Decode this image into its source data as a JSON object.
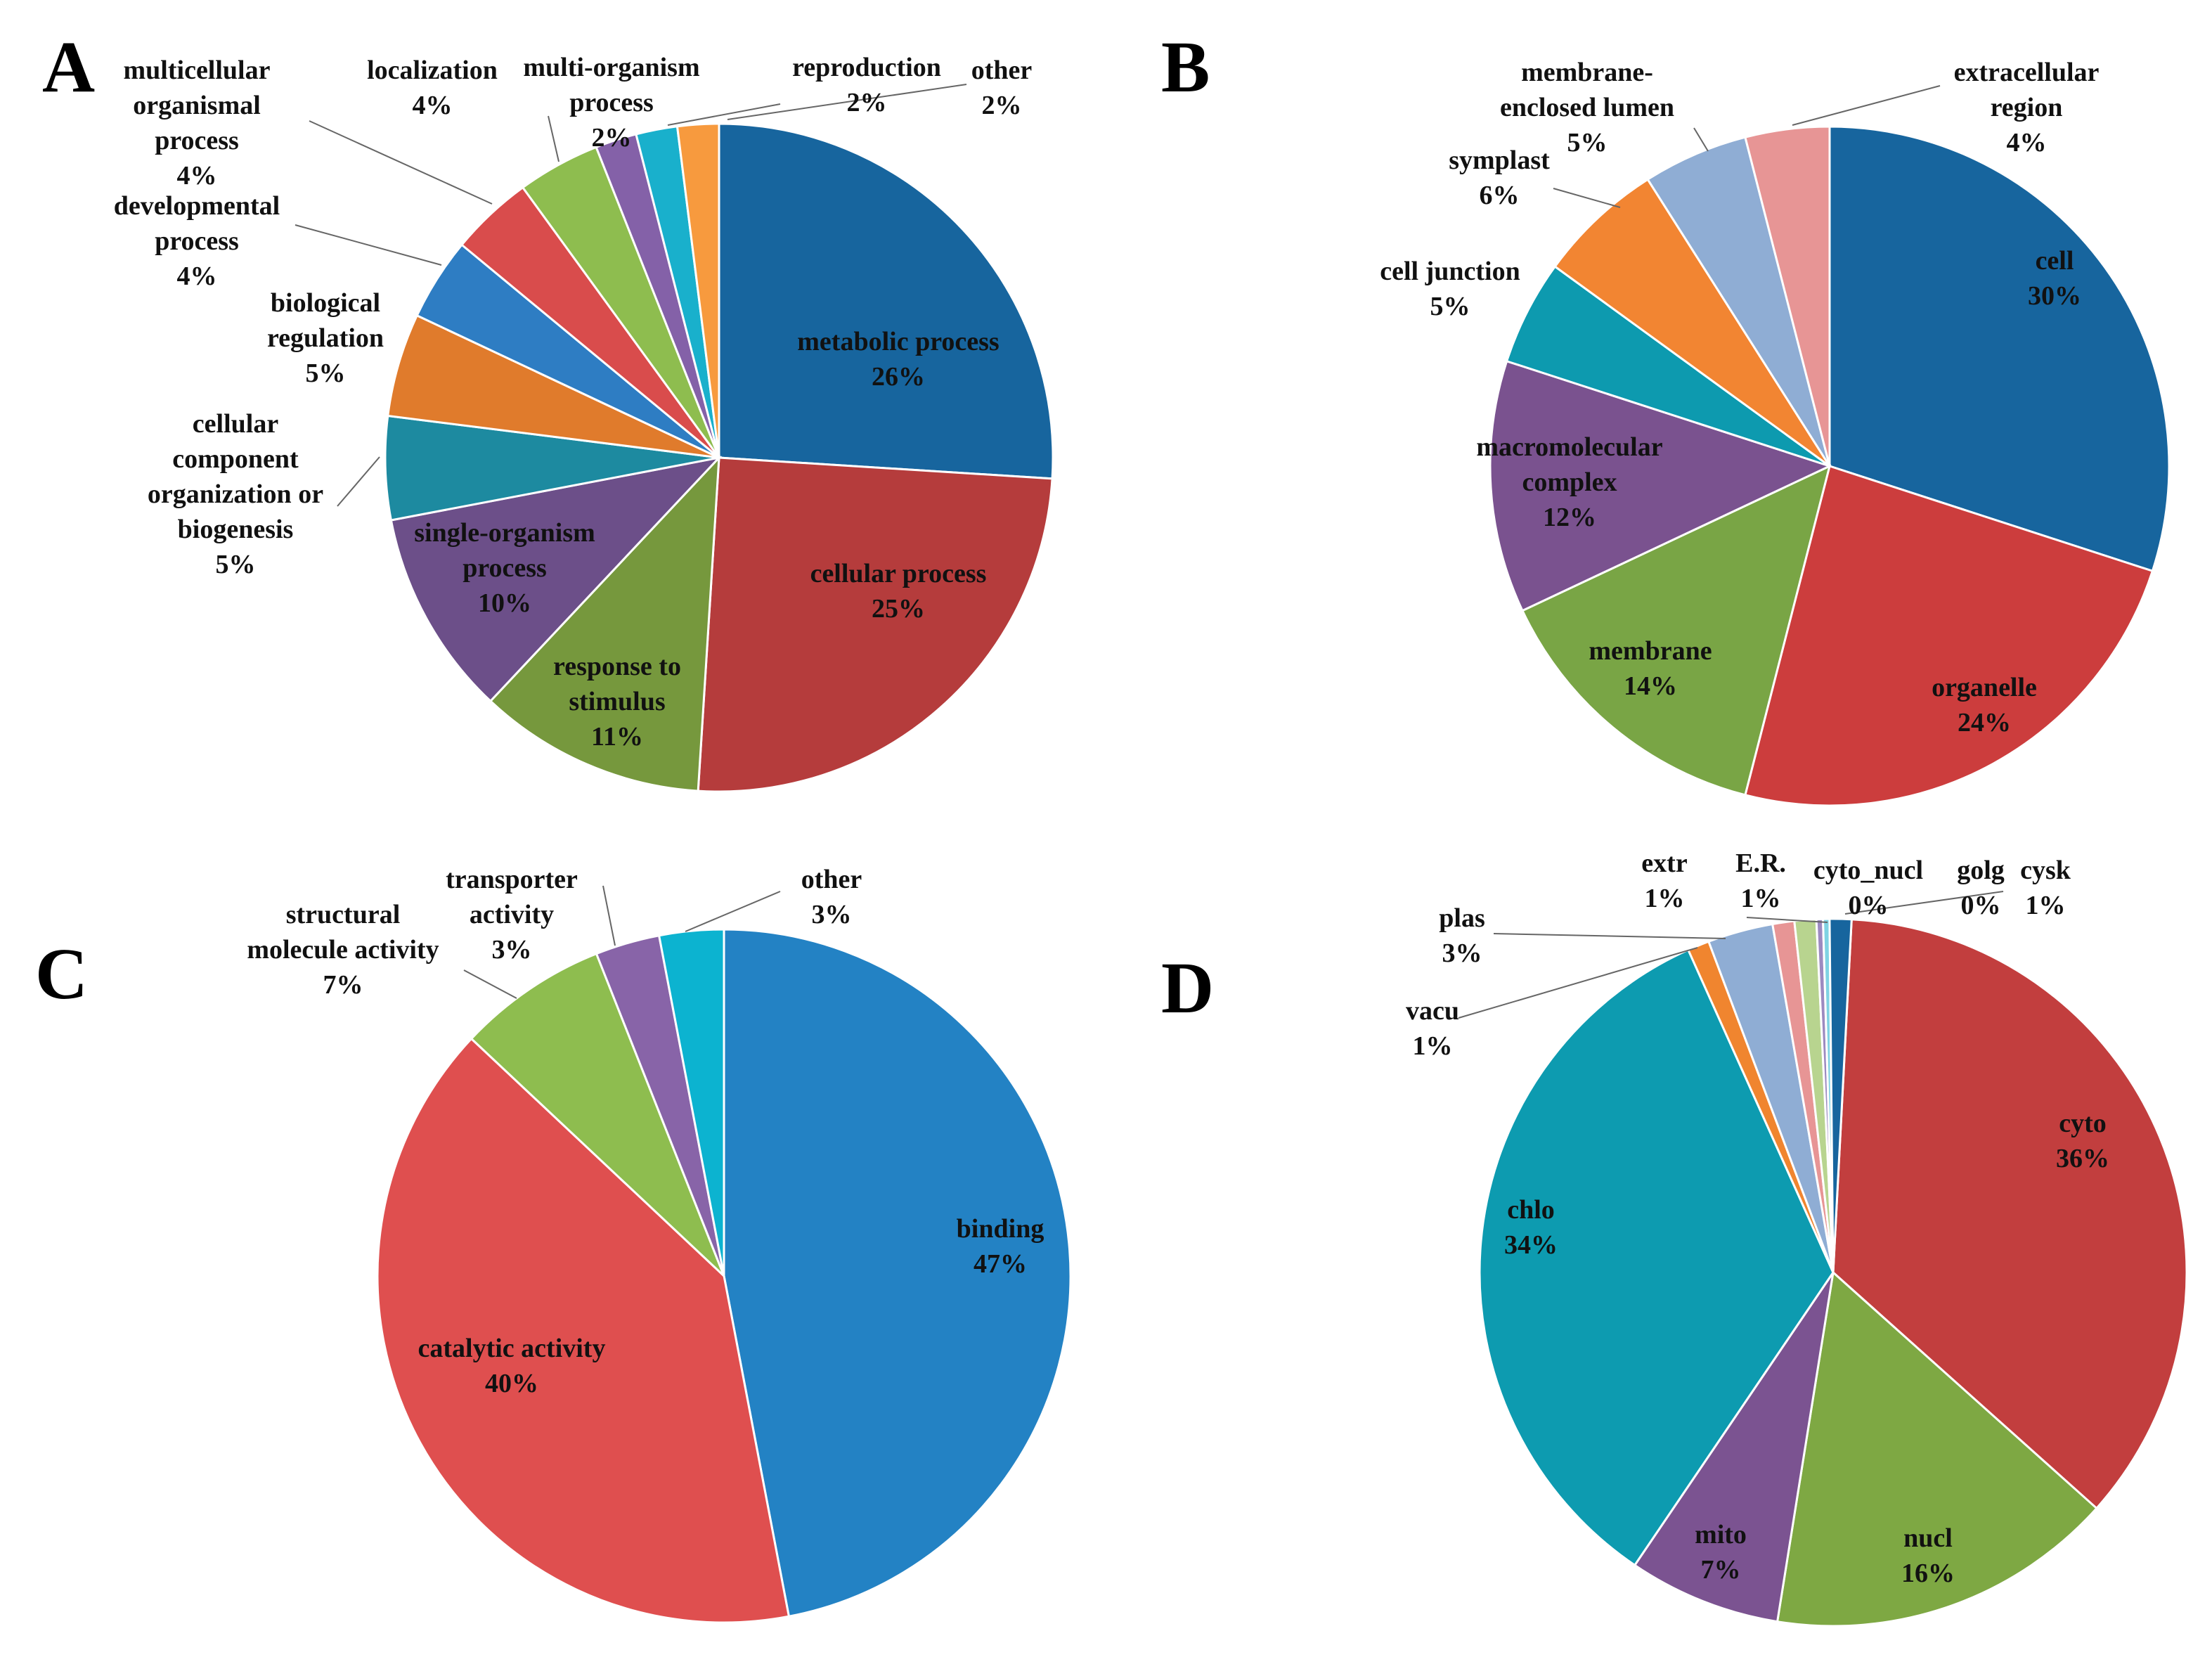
{
  "figure": {
    "background": "#ffffff"
  },
  "chart_data": [
    {
      "panel": "A",
      "type": "pie",
      "slices": [
        {
          "name": "metabolic process",
          "value": 26,
          "label": "26%",
          "color": "#17659e"
        },
        {
          "name": "cellular process",
          "value": 25,
          "label": "25%",
          "color": "#b53c3c"
        },
        {
          "name": "response to stimulus",
          "value": 11,
          "label": "11%",
          "color": "#76983d"
        },
        {
          "name": "single-organism process",
          "value": 10,
          "label": "10%",
          "color": "#6c4f89"
        },
        {
          "name": "cellular component organization or biogenesis",
          "value": 5,
          "label": "5%",
          "color": "#1d8aa0"
        },
        {
          "name": "biological regulation",
          "value": 5,
          "label": "5%",
          "color": "#e07b2c"
        },
        {
          "name": "developmental process",
          "value": 4,
          "label": "4%",
          "color": "#2e7dc3"
        },
        {
          "name": "multicellular organismal process",
          "value": 4,
          "label": "4%",
          "color": "#d94c4c"
        },
        {
          "name": "localization",
          "value": 4,
          "label": "4%",
          "color": "#8ebd4f"
        },
        {
          "name": "multi-organism process",
          "value": 2,
          "label": "2%",
          "color": "#8461a8"
        },
        {
          "name": "reproduction",
          "value": 2,
          "label": "2%",
          "color": "#19b0cc"
        },
        {
          "name": "other",
          "value": 2,
          "label": "2%",
          "color": "#f79a3e"
        }
      ]
    },
    {
      "panel": "B",
      "type": "pie",
      "slices": [
        {
          "name": "cell",
          "value": 30,
          "label": "30%",
          "color": "#17659e"
        },
        {
          "name": "organelle",
          "value": 24,
          "label": "24%",
          "color": "#cc3d3d"
        },
        {
          "name": "membrane",
          "value": 14,
          "label": "14%",
          "color": "#79a545"
        },
        {
          "name": "macromolecular complex",
          "value": 12,
          "label": "12%",
          "color": "#7a528f"
        },
        {
          "name": "cell junction",
          "value": 5,
          "label": "5%",
          "color": "#0d9aaf"
        },
        {
          "name": "symplast",
          "value": 6,
          "label": "6%",
          "color": "#f28532"
        },
        {
          "name": "membrane-enclosed lumen",
          "value": 5,
          "label": "5%",
          "color": "#8fadd4"
        },
        {
          "name": "extracellular region",
          "value": 4,
          "label": "4%",
          "color": "#e79595"
        }
      ]
    },
    {
      "panel": "C",
      "type": "pie",
      "slices": [
        {
          "name": "binding",
          "value": 47,
          "label": "47%",
          "color": "#2382c4"
        },
        {
          "name": "catalytic activity",
          "value": 40,
          "label": "40%",
          "color": "#df4f4f"
        },
        {
          "name": "structural molecule activity",
          "value": 7,
          "label": "7%",
          "color": "#8ebd4f"
        },
        {
          "name": "transporter activity",
          "value": 3,
          "label": "3%",
          "color": "#8864a8"
        },
        {
          "name": "other",
          "value": 3,
          "label": "3%",
          "color": "#0cb3d0"
        }
      ]
    },
    {
      "panel": "D",
      "type": "pie",
      "slices": [
        {
          "name": "cyto",
          "value": 36,
          "label": "36%",
          "color": "#c23e3e"
        },
        {
          "name": "nucl",
          "value": 16,
          "label": "16%",
          "color": "#7ea843"
        },
        {
          "name": "mito",
          "value": 7,
          "label": "7%",
          "color": "#7b5391"
        },
        {
          "name": "chlo",
          "value": 34,
          "label": "34%",
          "color": "#0d9bb0"
        },
        {
          "name": "vacu",
          "value": 1,
          "label": "1%",
          "color": "#f0852f"
        },
        {
          "name": "plas",
          "value": 3,
          "label": "3%",
          "color": "#8fadd4"
        },
        {
          "name": "extr",
          "value": 1,
          "label": "1%",
          "color": "#e79595"
        },
        {
          "name": "E.R.",
          "value": 1,
          "label": "1%",
          "color": "#b8d48f"
        },
        {
          "name": "cyto_nucl",
          "value": 0.3,
          "label": "0%",
          "color": "#9c8ac0"
        },
        {
          "name": "golg",
          "value": 0.3,
          "label": "0%",
          "color": "#7fd3e3"
        },
        {
          "name": "cysk",
          "value": 1,
          "label": "1%",
          "color": "#17659e"
        }
      ]
    }
  ]
}
